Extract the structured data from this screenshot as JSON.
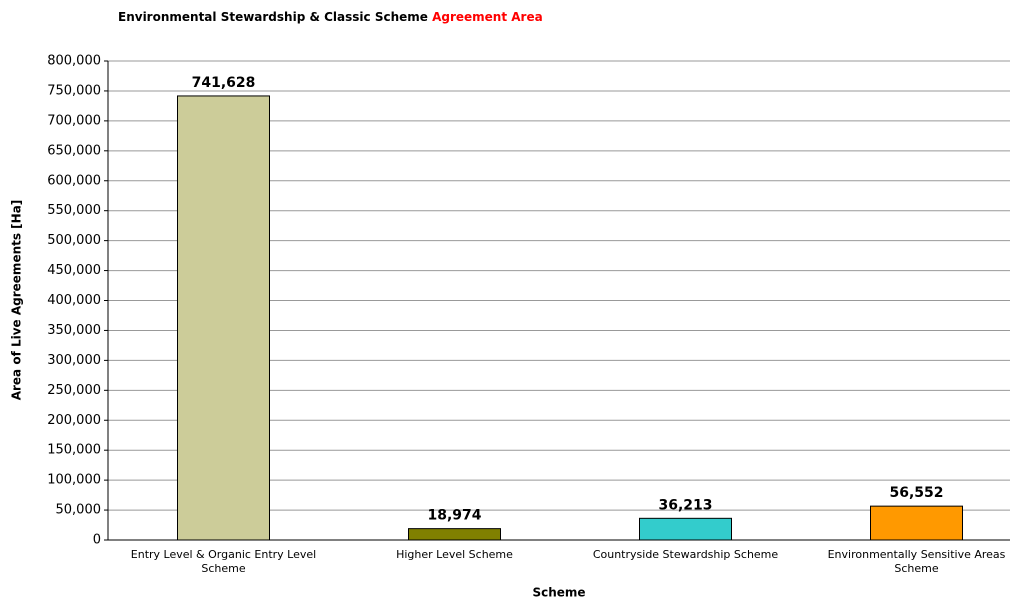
{
  "chart_data": {
    "type": "bar",
    "title": "Environmental Stewardship & Classic Scheme",
    "title_highlight": "Agreement Area",
    "title_highlight_color": "#ff0000",
    "x_label": "Scheme",
    "y_label": "Area of Live Agreements [Ha]",
    "categories": [
      "Entry Level & Organic Entry Level Scheme",
      "Higher Level Scheme",
      "Countryside Stewardship Scheme",
      "Environmentally Sensitive Areas Scheme"
    ],
    "values": [
      741628,
      18974,
      36213,
      56552
    ],
    "value_labels": [
      "741,628",
      "18,974",
      "36,213",
      "56,552"
    ],
    "colors": [
      "#cccc99",
      "#808000",
      "#33cccc",
      "#ff9900"
    ],
    "ylim": [
      0,
      800000
    ],
    "yticks": [
      0,
      {
        "value": 50000,
        "label": "50,000"
      },
      {
        "value": 100000,
        "label": "100,000"
      },
      {
        "value": 150000,
        "label": "150,000"
      },
      {
        "value": 200000,
        "label": "200,000"
      },
      {
        "value": 250000,
        "label": "250,000"
      },
      {
        "value": 300000,
        "label": "300,000"
      },
      {
        "value": 350000,
        "label": "350,000"
      },
      {
        "value": 400000,
        "label": "400,000"
      },
      {
        "value": 450000,
        "label": "450,000"
      },
      {
        "value": 500000,
        "label": "500,000"
      },
      {
        "value": 550000,
        "label": "550,000"
      },
      {
        "value": 600000,
        "label": "600,000"
      },
      {
        "value": 650000,
        "label": "650,000"
      },
      {
        "value": 700000,
        "label": "700,000"
      },
      {
        "value": 750000,
        "label": "750,000"
      },
      {
        "value": 800000,
        "label": "800,000"
      }
    ],
    "grid": true
  }
}
